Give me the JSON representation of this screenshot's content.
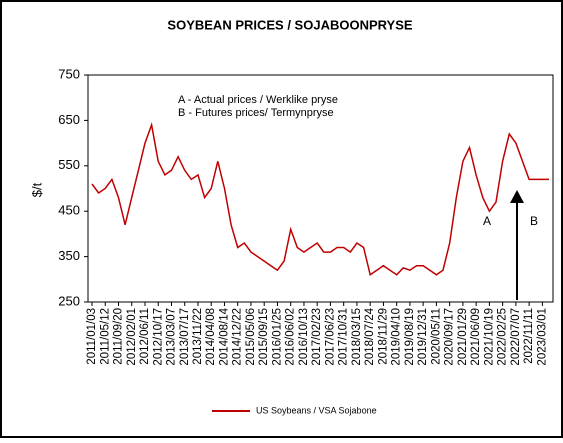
{
  "chart_data": {
    "type": "line",
    "title": "SOYBEAN PRICES / SOJABOONPRYSE",
    "ylabel": "$/t",
    "annotations": [
      "A - Actual prices / Werklike pryse",
      "B - Futures prices/ Termynpryse",
      "A",
      "B"
    ],
    "categories": [
      "2011/01/03",
      null,
      "2011/05/12",
      null,
      "2011/09/20",
      null,
      "2012/02/01",
      null,
      "2012/06/11",
      null,
      "2012/10/17",
      null,
      "2013/03/07",
      null,
      "2013/07/17",
      null,
      "2013/11/22",
      null,
      "2014/04/08",
      null,
      "2014/08/14",
      null,
      "2014/12/22",
      null,
      "2015/05/06",
      null,
      "2015/09/15",
      null,
      "2016/01/25",
      null,
      "2016/06/02",
      null,
      "2016/10/13",
      null,
      "2017/02/23",
      null,
      "2017/06/23",
      null,
      "2017/10/31",
      null,
      "2018/03/15",
      null,
      "2018/07/24",
      null,
      "2018/11/29",
      null,
      "2019/04/10",
      null,
      "2019/08/19",
      null,
      "2019/12/31",
      null,
      "2020/05/11",
      null,
      "2020/09/17",
      null,
      "2021/01/29",
      null,
      "2021/06/09",
      null,
      "2021/10/19",
      null,
      "2022/02/25",
      null,
      "2022/07/07",
      null,
      "2022/11/11",
      null,
      "2023/03/01",
      null
    ],
    "series": [
      {
        "name": "US Soybeans / VSA Sojabone",
        "color": "#c00000",
        "values": [
          510,
          490,
          500,
          520,
          480,
          420,
          480,
          540,
          600,
          640,
          560,
          530,
          540,
          570,
          540,
          520,
          530,
          480,
          500,
          560,
          500,
          420,
          370,
          380,
          360,
          350,
          340,
          330,
          320,
          340,
          410,
          370,
          360,
          370,
          380,
          360,
          360,
          370,
          370,
          360,
          380,
          370,
          310,
          320,
          330,
          320,
          310,
          325,
          320,
          330,
          330,
          320,
          310,
          320,
          380,
          480,
          560,
          590,
          530,
          480,
          450,
          470,
          560,
          620,
          600,
          560,
          520,
          520,
          520,
          520
        ]
      }
    ],
    "ylim": [
      250,
      750
    ],
    "yticks": [
      250,
      350,
      450,
      550,
      650,
      750
    ]
  }
}
